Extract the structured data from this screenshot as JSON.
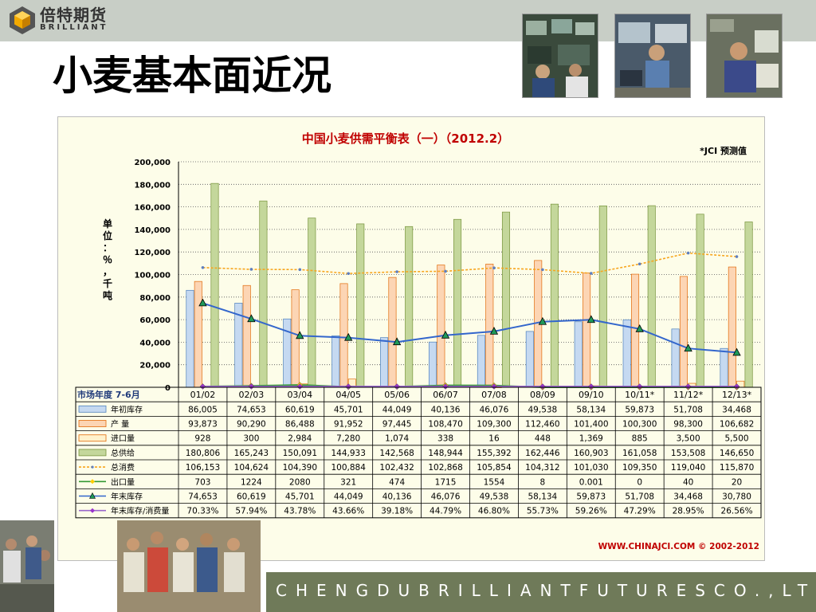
{
  "brand": {
    "name_cn": "倍特期货",
    "name_en": "BRILLIANT"
  },
  "page_title": "小麦基本面近况",
  "footer_text": "CHENGDUBRILLIANTFUTURESCO.,LTD.",
  "chart_data": {
    "type": "bar",
    "title": "中国小麦供需平衡表（一）（2012.2）",
    "note": "*JCI 预测值",
    "ylabel": "单位：％，千吨",
    "row_header": "市场年度 7-6月",
    "source": "WWW.CHINAJCI.COM © 2002-2012",
    "ylim": [
      0,
      200000
    ],
    "yticks": [
      "0",
      "20,000",
      "40,000",
      "60,000",
      "80,000",
      "100,000",
      "120,000",
      "140,000",
      "160,000",
      "180,000",
      "200,000"
    ],
    "categories": [
      "01/02",
      "02/03",
      "03/04",
      "04/05",
      "05/06",
      "06/07",
      "07/08",
      "08/09",
      "09/10",
      "10/11*",
      "11/12*",
      "12/13*"
    ],
    "series": [
      {
        "name": "年初库存",
        "kind": "bar",
        "color": "#c5d9f1",
        "stroke": "#4f81bd",
        "values": [
          86005,
          74653,
          60619,
          45701,
          44049,
          40136,
          46076,
          49538,
          58134,
          59873,
          51708,
          34468
        ],
        "labels": [
          "86,005",
          "74,653",
          "60,619",
          "45,701",
          "44,049",
          "40,136",
          "46,076",
          "49,538",
          "58,134",
          "59,873",
          "51,708",
          "34,468"
        ]
      },
      {
        "name": "产 量",
        "kind": "bar",
        "color": "#fcd5b4",
        "stroke": "#e26b0a",
        "values": [
          93873,
          90290,
          86488,
          91952,
          97445,
          108470,
          109300,
          112460,
          101400,
          100300,
          98300,
          106682
        ],
        "labels": [
          "93,873",
          "90,290",
          "86,488",
          "91,952",
          "97,445",
          "108,470",
          "109,300",
          "112,460",
          "101,400",
          "100,300",
          "98,300",
          "106,682"
        ]
      },
      {
        "name": "进口量",
        "kind": "bar",
        "color": "#fff2cc",
        "stroke": "#e26b0a",
        "values": [
          928,
          300,
          2984,
          7280,
          1074,
          338,
          16,
          448,
          1369,
          885,
          3500,
          5500
        ],
        "labels": [
          "928",
          "300",
          "2,984",
          "7,280",
          "1,074",
          "338",
          "16",
          "448",
          "1,369",
          "885",
          "3,500",
          "5,500"
        ]
      },
      {
        "name": "总供给",
        "kind": "bar",
        "color": "#c4d79b",
        "stroke": "#77933c",
        "values": [
          180806,
          165243,
          150091,
          144933,
          142568,
          148944,
          155392,
          162446,
          160903,
          161058,
          153508,
          146650
        ],
        "labels": [
          "180,806",
          "165,243",
          "150,091",
          "144,933",
          "142,568",
          "148,944",
          "155,392",
          "162,446",
          "160,903",
          "161,058",
          "153,508",
          "146,650"
        ]
      },
      {
        "name": "总消费",
        "kind": "line",
        "color": "#f7a51e",
        "dash": true,
        "marker": "dot",
        "values": [
          106153,
          104624,
          104390,
          100884,
          102432,
          102868,
          105854,
          104312,
          101030,
          109350,
          119040,
          115870
        ],
        "labels": [
          "106,153",
          "104,624",
          "104,390",
          "100,884",
          "102,432",
          "102,868",
          "105,854",
          "104,312",
          "101,030",
          "109,350",
          "119,040",
          "115,870"
        ]
      },
      {
        "name": "出口量",
        "kind": "line",
        "color": "#339933",
        "marker": "diamond",
        "marker_color": "#ffcc00",
        "values": [
          703,
          1224,
          2080,
          321,
          474,
          1715,
          1554,
          8,
          0.001,
          0,
          40,
          20
        ],
        "labels": [
          "703",
          "1224",
          "2080",
          "321",
          "474",
          "1715",
          "1554",
          "8",
          "0.001",
          "0",
          "40",
          "20"
        ]
      },
      {
        "name": "年末库存",
        "kind": "line",
        "color": "#3366cc",
        "marker": "triangle",
        "values": [
          74653,
          60619,
          45701,
          44049,
          40136,
          46076,
          49538,
          58134,
          59873,
          51708,
          34468,
          30780
        ],
        "labels": [
          "74,653",
          "60,619",
          "45,701",
          "44,049",
          "40,136",
          "46,076",
          "49,538",
          "58,134",
          "59,873",
          "51,708",
          "34,468",
          "30,780"
        ]
      },
      {
        "name": "年末库存/消费量",
        "kind": "line",
        "color": "#9966cc",
        "marker": "diamond",
        "marker_color": "#9933cc",
        "plot_as_baseline": true,
        "values": [
          70.33,
          57.94,
          43.78,
          43.66,
          39.18,
          44.79,
          46.8,
          55.73,
          59.26,
          47.29,
          28.95,
          26.56
        ],
        "labels": [
          "70.33%",
          "57.94%",
          "43.78%",
          "43.66%",
          "39.18%",
          "44.79%",
          "46.80%",
          "55.73%",
          "59.26%",
          "47.29%",
          "28.95%",
          "26.56%"
        ]
      }
    ],
    "grid": true,
    "legend": "table-left"
  }
}
